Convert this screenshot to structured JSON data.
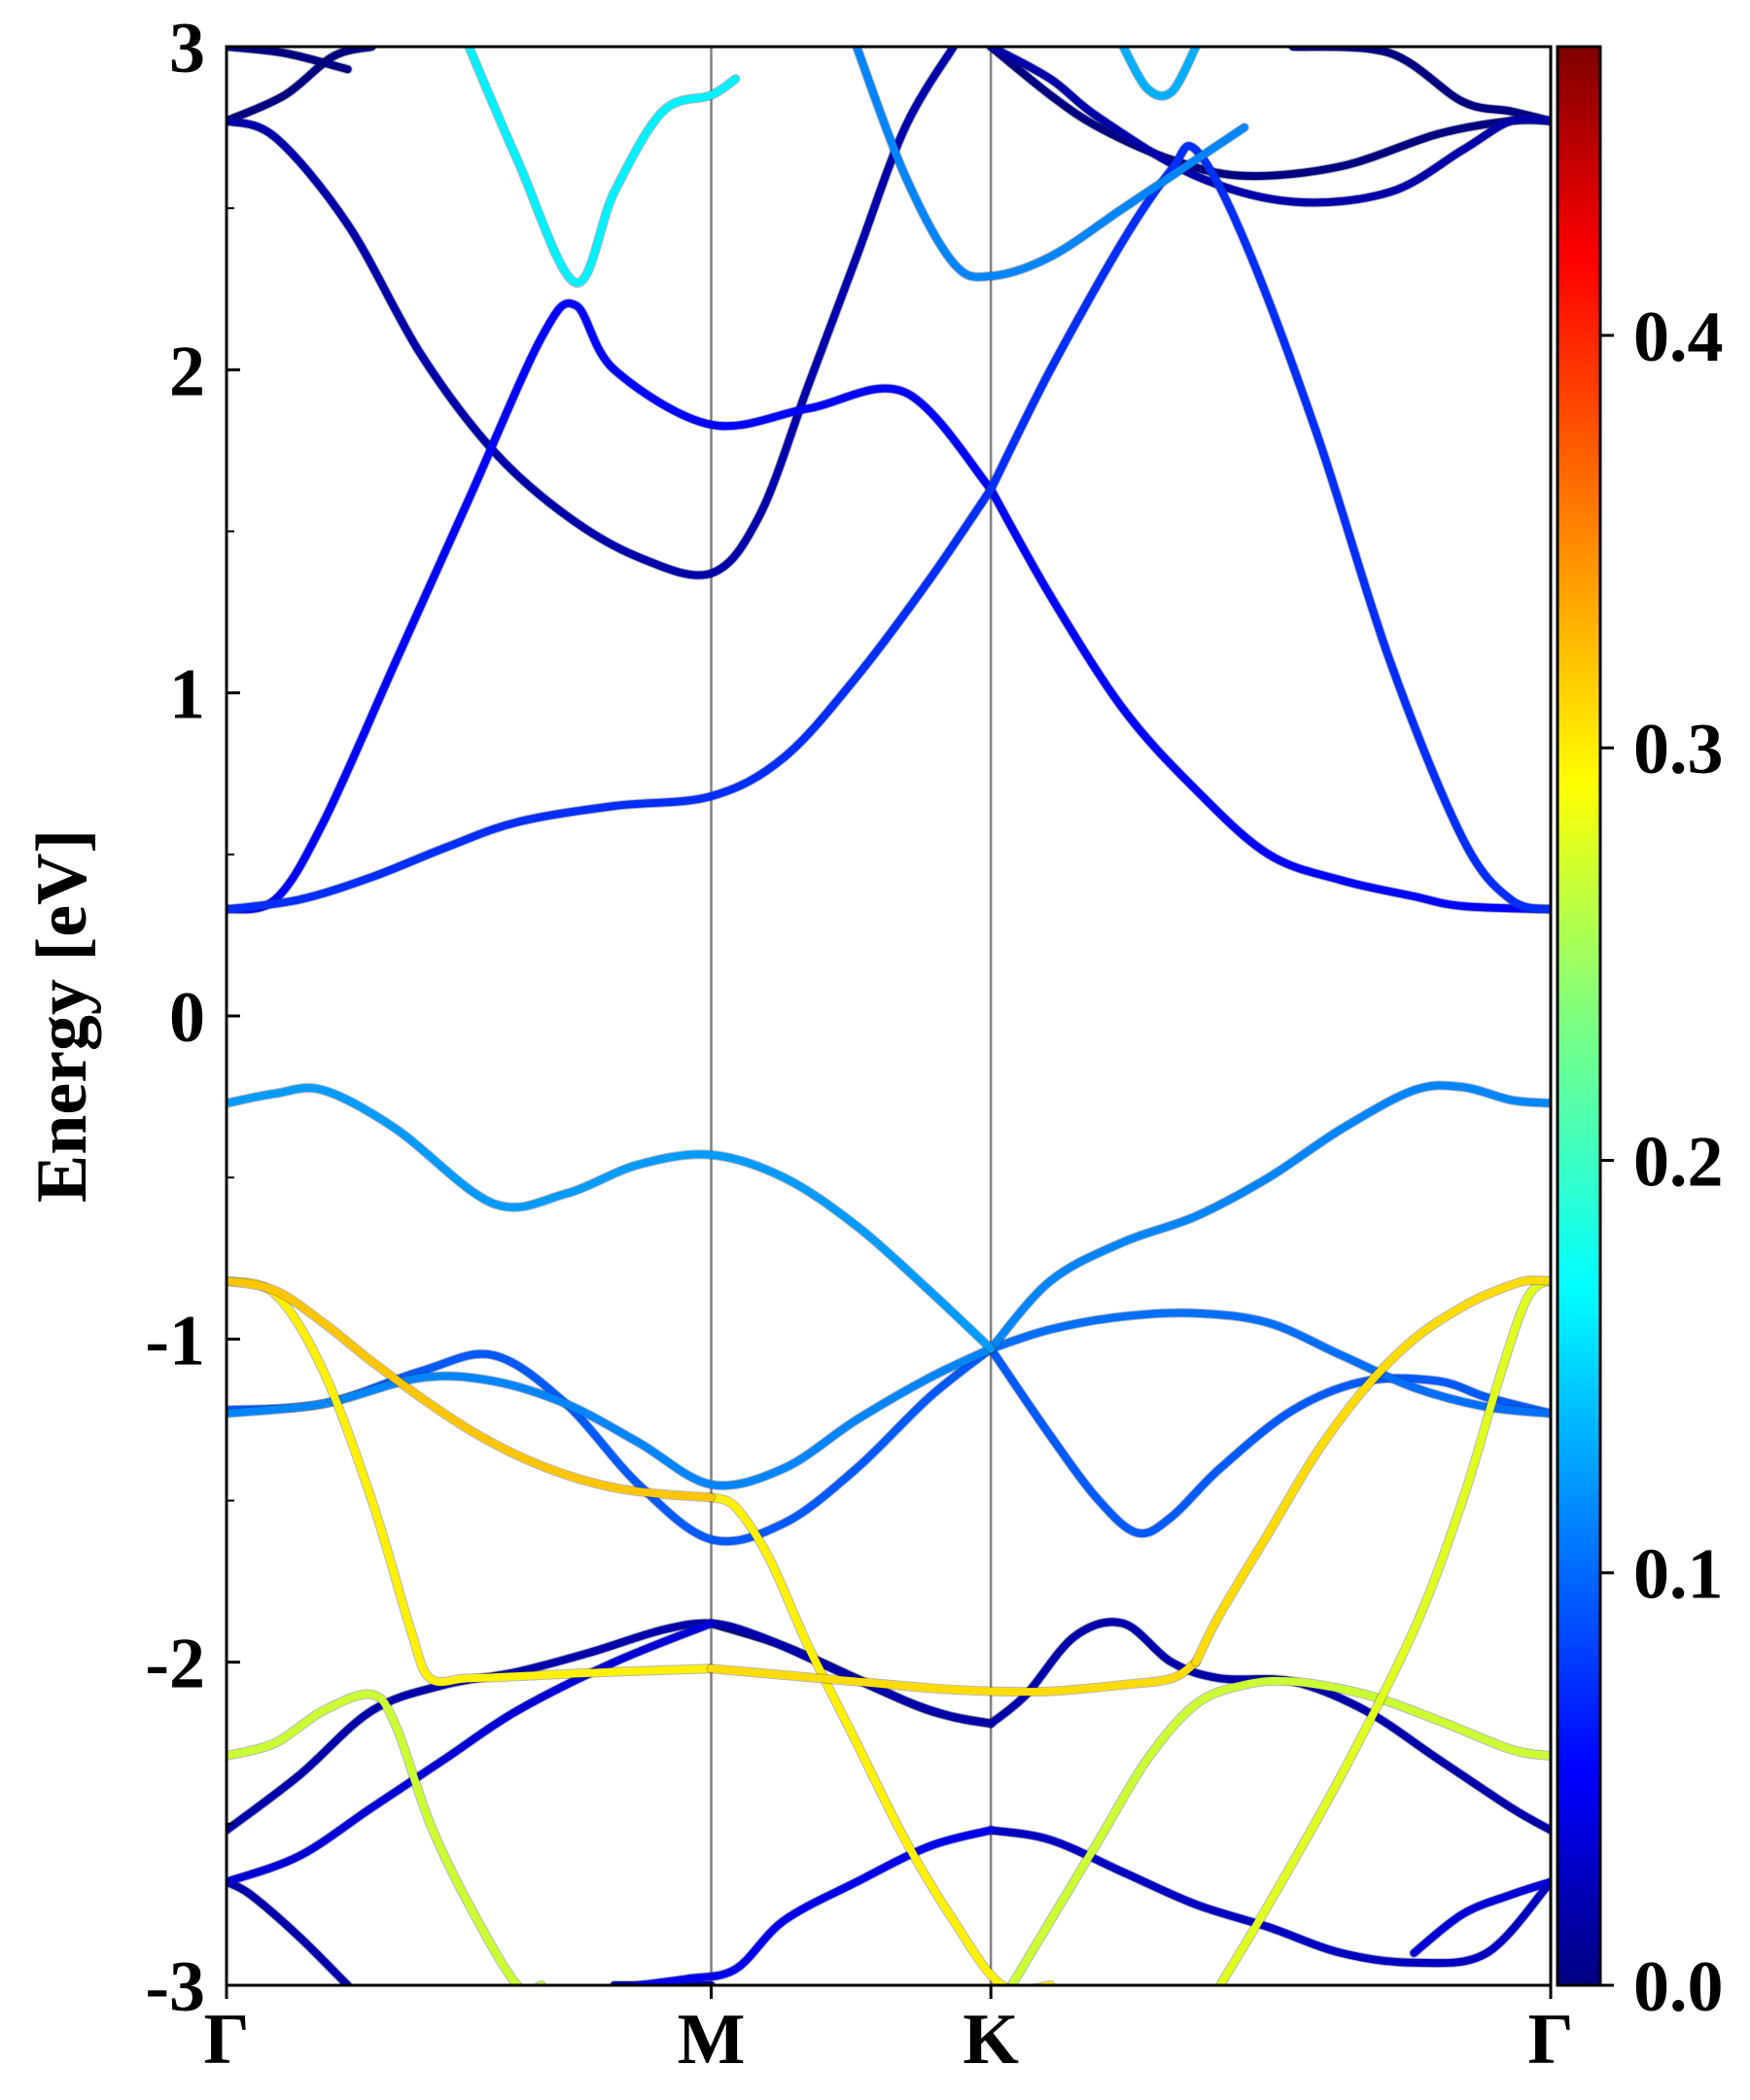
{
  "chart_data": {
    "type": "line",
    "title": "",
    "ylabel": "Energy [eV]",
    "xlabel": "",
    "ylim": [
      -3,
      3
    ],
    "x_ticks": [
      {
        "label": "Γ",
        "x": 0.0
      },
      {
        "label": "M",
        "x": 1.0
      },
      {
        "label": "K",
        "x": 1.577
      },
      {
        "label": "Γ",
        "x": 2.732
      }
    ],
    "y_ticks": [
      {
        "label": "-3",
        "value": -3
      },
      {
        "label": "-2",
        "value": -2
      },
      {
        "label": "-1",
        "value": -1
      },
      {
        "label": "0",
        "value": 0
      },
      {
        "label": "1",
        "value": 1
      },
      {
        "label": "2",
        "value": 2
      },
      {
        "label": "3",
        "value": 3
      }
    ],
    "colorbar": {
      "colormap": "jet",
      "range": [
        0.0,
        0.47
      ],
      "ticks": [
        {
          "label": "0.0",
          "value": 0.0
        },
        {
          "label": "0.1",
          "value": 0.1
        },
        {
          "label": "0.2",
          "value": 0.2
        },
        {
          "label": "0.3",
          "value": 0.3
        },
        {
          "label": "0.4",
          "value": 0.4
        }
      ]
    },
    "series": [
      {
        "weight": 0.08,
        "x": [
          0.0,
          0.15,
          0.3,
          0.45,
          0.6,
          0.8,
          1.0,
          1.15,
          1.3,
          1.45,
          1.577
        ],
        "y": [
          0.33,
          0.36,
          0.43,
          0.52,
          0.6,
          0.65,
          0.68,
          0.8,
          1.05,
          1.35,
          1.63
        ]
      },
      {
        "weight": 0.06,
        "x": [
          0.0,
          0.1,
          0.2,
          0.35,
          0.5,
          0.65,
          0.72,
          0.8,
          1.0,
          1.2,
          1.4,
          1.577
        ],
        "y": [
          0.33,
          0.36,
          0.6,
          1.1,
          1.6,
          2.1,
          2.2,
          2.0,
          1.83,
          1.88,
          1.93,
          1.63
        ]
      },
      {
        "weight": 0.06,
        "x": [
          1.577,
          1.7,
          1.85,
          2.0,
          2.15,
          2.3,
          2.45,
          2.55,
          2.732
        ],
        "y": [
          1.63,
          1.3,
          0.95,
          0.7,
          0.5,
          0.42,
          0.37,
          0.34,
          0.33
        ]
      },
      {
        "weight": 0.08,
        "x": [
          1.577,
          1.7,
          1.85,
          1.95,
          2.0,
          2.1,
          2.25,
          2.4,
          2.55,
          2.65,
          2.732
        ],
        "y": [
          1.63,
          2.0,
          2.4,
          2.62,
          2.68,
          2.4,
          1.8,
          1.1,
          0.55,
          0.36,
          0.33
        ]
      },
      {
        "weight": 0.02,
        "x": [
          0.0,
          0.1,
          0.25,
          0.4,
          0.55,
          0.7,
          0.85,
          1.0,
          1.1,
          1.2,
          1.3,
          1.4,
          1.5
        ],
        "y": [
          2.77,
          2.72,
          2.45,
          2.05,
          1.75,
          1.55,
          1.42,
          1.37,
          1.55,
          1.95,
          2.35,
          2.75,
          3.0
        ]
      },
      {
        "weight": 0.0,
        "x": [
          1.577,
          1.7,
          1.8,
          1.95,
          2.1,
          2.3,
          2.5,
          2.65,
          2.732
        ],
        "y": [
          3.0,
          2.85,
          2.75,
          2.65,
          2.6,
          2.63,
          2.73,
          2.77,
          2.77
        ]
      },
      {
        "weight": 0.02,
        "x": [
          1.577,
          1.7,
          1.8,
          2.0,
          2.2,
          2.4,
          2.55,
          2.65,
          2.732
        ],
        "y": [
          3.0,
          2.9,
          2.78,
          2.6,
          2.52,
          2.55,
          2.68,
          2.77,
          2.77
        ]
      },
      {
        "weight": 0.0,
        "x": [
          2.2,
          2.4,
          2.55,
          2.65,
          2.732
        ],
        "y": [
          3.0,
          2.98,
          2.83,
          2.8,
          2.77
        ]
      },
      {
        "weight": 0.0,
        "x": [
          0.0,
          0.12,
          0.22,
          0.3
        ],
        "y": [
          2.77,
          2.85,
          2.97,
          3.0
        ]
      },
      {
        "weight": 0.0,
        "x": [
          0.0,
          0.12,
          0.25
        ],
        "y": [
          3.0,
          2.98,
          2.93
        ]
      },
      {
        "weight": 0.17,
        "x": [
          0.5,
          0.6,
          0.72,
          0.8,
          0.9,
          1.0,
          1.05
        ],
        "y": [
          3.0,
          2.65,
          2.27,
          2.55,
          2.8,
          2.85,
          2.9
        ]
      },
      {
        "weight": 0.12,
        "x": [
          1.3,
          1.4,
          1.5,
          1.577,
          1.7,
          1.85,
          2.0,
          2.1
        ],
        "y": [
          3.0,
          2.6,
          2.33,
          2.29,
          2.35,
          2.5,
          2.65,
          2.75
        ]
      },
      {
        "weight": 0.14,
        "x": [
          1.85,
          1.9,
          1.95,
          2.0
        ],
        "y": [
          3.0,
          2.87,
          2.86,
          3.0
        ]
      },
      {
        "weight": 0.13,
        "x": [
          0.0,
          0.1,
          0.2,
          0.35,
          0.55,
          0.7,
          0.85,
          1.0,
          1.15,
          1.3,
          1.45,
          1.577
        ],
        "y": [
          -0.27,
          -0.24,
          -0.23,
          -0.35,
          -0.58,
          -0.55,
          -0.46,
          -0.43,
          -0.5,
          -0.65,
          -0.85,
          -1.03
        ]
      },
      {
        "weight": 0.12,
        "x": [
          1.577,
          1.7,
          1.85,
          2.0,
          2.15,
          2.3,
          2.45,
          2.55,
          2.65,
          2.732
        ],
        "y": [
          -1.03,
          -0.82,
          -0.7,
          -0.62,
          -0.5,
          -0.35,
          -0.23,
          -0.22,
          -0.26,
          -0.27
        ]
      },
      {
        "weight": 0.1,
        "x": [
          0.0,
          0.2,
          0.4,
          0.55,
          0.7,
          0.85,
          1.0,
          1.15,
          1.3,
          1.45,
          1.577
        ],
        "y": [
          -1.22,
          -1.2,
          -1.1,
          -1.05,
          -1.2,
          -1.45,
          -1.62,
          -1.57,
          -1.4,
          -1.18,
          -1.03
        ]
      },
      {
        "weight": 0.12,
        "x": [
          0.0,
          0.2,
          0.4,
          0.55,
          0.7,
          0.85,
          1.0,
          1.15,
          1.3,
          1.45,
          1.577
        ],
        "y": [
          -1.23,
          -1.2,
          -1.12,
          -1.13,
          -1.2,
          -1.32,
          -1.45,
          -1.4,
          -1.25,
          -1.12,
          -1.03
        ]
      },
      {
        "weight": 0.1,
        "x": [
          1.577,
          1.7,
          1.8,
          1.88,
          1.95,
          2.05,
          2.2,
          2.35,
          2.5,
          2.6,
          2.732
        ],
        "y": [
          -1.03,
          -1.3,
          -1.5,
          -1.6,
          -1.55,
          -1.4,
          -1.22,
          -1.13,
          -1.13,
          -1.18,
          -1.23
        ]
      },
      {
        "weight": 0.11,
        "x": [
          1.577,
          1.7,
          1.85,
          2.0,
          2.15,
          2.3,
          2.45,
          2.6,
          2.732
        ],
        "y": [
          -1.03,
          -0.97,
          -0.93,
          -0.92,
          -0.95,
          -1.05,
          -1.15,
          -1.21,
          -1.23
        ]
      },
      {
        "weight": 0.32,
        "x": [
          0.0,
          0.1,
          0.2,
          0.3,
          0.4,
          0.5,
          0.6,
          0.7,
          0.8,
          0.9,
          1.0
        ],
        "y": [
          -0.82,
          -0.85,
          -0.95,
          -1.07,
          -1.18,
          -1.28,
          -1.36,
          -1.42,
          -1.46,
          -1.48,
          -1.49
        ]
      },
      {
        "weight": 0.3,
        "x": [
          1.0,
          1.05,
          1.12,
          1.2,
          1.3,
          1.4,
          1.5,
          1.6,
          1.7
        ],
        "y": [
          -1.49,
          -1.52,
          -1.68,
          -1.95,
          -2.25,
          -2.55,
          -2.8,
          -3.0,
          -3.0
        ]
      },
      {
        "weight": 0.3,
        "x": [
          0.0,
          0.1,
          0.2,
          0.3,
          0.38,
          0.42,
          0.5,
          0.65,
          0.8,
          1.0
        ],
        "y": [
          -0.82,
          -0.86,
          -1.1,
          -1.5,
          -1.9,
          -2.05,
          -2.05,
          -2.04,
          -2.03,
          -2.02
        ]
      },
      {
        "weight": 0.31,
        "x": [
          1.0,
          1.15,
          1.3,
          1.45,
          1.577,
          1.7,
          1.85,
          1.95,
          2.0
        ],
        "y": [
          -2.02,
          -2.04,
          -2.06,
          -2.08,
          -2.09,
          -2.09,
          -2.07,
          -2.05,
          -2.0
        ]
      },
      {
        "weight": 0.31,
        "x": [
          2.0,
          2.05,
          2.15,
          2.25,
          2.35,
          2.45,
          2.55,
          2.62,
          2.68,
          2.732
        ],
        "y": [
          -2.0,
          -1.85,
          -1.6,
          -1.35,
          -1.15,
          -1.0,
          -0.9,
          -0.85,
          -0.82,
          -0.82
        ]
      },
      {
        "weight": 0.28,
        "x": [
          2.05,
          2.15,
          2.3,
          2.45,
          2.55,
          2.62,
          2.67,
          2.7,
          2.732
        ],
        "y": [
          -3.0,
          -2.75,
          -2.35,
          -1.9,
          -1.5,
          -1.15,
          -0.92,
          -0.84,
          -0.82
        ]
      },
      {
        "weight": 0.27,
        "x": [
          1.62,
          1.7,
          1.8,
          1.9,
          2.0,
          2.1,
          2.2,
          2.35,
          2.5,
          2.65,
          2.732
        ],
        "y": [
          -3.0,
          -2.8,
          -2.55,
          -2.3,
          -2.13,
          -2.07,
          -2.06,
          -2.1,
          -2.18,
          -2.27,
          -2.29
        ]
      },
      {
        "weight": 0.27,
        "x": [
          0.0,
          0.1,
          0.2,
          0.3,
          0.35,
          0.42,
          0.5,
          0.6,
          0.65
        ],
        "y": [
          -2.29,
          -2.25,
          -2.15,
          -2.1,
          -2.2,
          -2.5,
          -2.75,
          -3.0,
          -3.0
        ]
      },
      {
        "weight": 0.02,
        "x": [
          0.0,
          0.15,
          0.3,
          0.45,
          0.6,
          0.75,
          0.9,
          1.0,
          1.1,
          1.25,
          1.4,
          1.5,
          1.577
        ],
        "y": [
          -2.52,
          -2.35,
          -2.15,
          -2.07,
          -2.03,
          -1.97,
          -1.9,
          -1.88,
          -1.92,
          -2.02,
          -2.12,
          -2.17,
          -2.19
        ]
      },
      {
        "weight": 0.02,
        "x": [
          1.577,
          1.65,
          1.75,
          1.85,
          1.95,
          2.05,
          2.2,
          2.35,
          2.5,
          2.65,
          2.732
        ],
        "y": [
          -2.19,
          -2.1,
          -1.92,
          -1.88,
          -2.0,
          -2.05,
          -2.06,
          -2.15,
          -2.3,
          -2.45,
          -2.52
        ]
      },
      {
        "weight": 0.04,
        "x": [
          0.0,
          0.15,
          0.3,
          0.45,
          0.6,
          0.8,
          1.0
        ],
        "y": [
          -2.68,
          -2.6,
          -2.45,
          -2.3,
          -2.15,
          -2.0,
          -1.88
        ]
      },
      {
        "weight": 0.0,
        "x": [
          1.0,
          1.15,
          1.3,
          1.45,
          1.577
        ],
        "y": [
          -1.88,
          -1.95,
          -2.05,
          -2.15,
          -2.19
        ]
      },
      {
        "weight": 0.03,
        "x": [
          1.577,
          1.7,
          1.85,
          2.0,
          2.15,
          2.3,
          2.45,
          2.6,
          2.732
        ],
        "y": [
          -2.52,
          -2.55,
          -2.65,
          -2.75,
          -2.82,
          -2.9,
          -2.93,
          -2.9,
          -2.68
        ]
      },
      {
        "weight": 0.05,
        "x": [
          0.85,
          0.95,
          1.05,
          1.15,
          1.3,
          1.45,
          1.577
        ],
        "y": [
          -3.0,
          -2.98,
          -2.95,
          -2.8,
          -2.68,
          -2.57,
          -2.52
        ]
      },
      {
        "weight": 0.04,
        "x": [
          2.45,
          2.55,
          2.65,
          2.732
        ],
        "y": [
          -2.9,
          -2.78,
          -2.72,
          -2.68
        ]
      },
      {
        "weight": 0.02,
        "x": [
          0.0,
          0.05,
          0.15,
          0.25
        ],
        "y": [
          -2.68,
          -2.72,
          -2.85,
          -3.0
        ]
      },
      {
        "weight": 0.02,
        "x": [
          0.8,
          0.9,
          1.0
        ],
        "y": [
          -3.0,
          -3.0,
          -3.0
        ]
      }
    ]
  }
}
